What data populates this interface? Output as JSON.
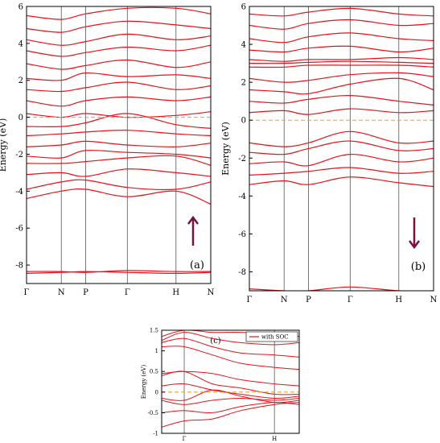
{
  "colors": {
    "band": "#e8111b",
    "fermi": "#f0a020",
    "arrow": "#7a1040",
    "frame": "#000000",
    "hsp_line": "#555555"
  },
  "chart_data": [
    {
      "type": "line",
      "panel_label": "(a)",
      "spin": "up",
      "ylabel": "Energy (eV)",
      "ylim": [
        -9,
        6
      ],
      "yticks": [
        "-8",
        "-6",
        "-4",
        "-2",
        "0",
        "2",
        "4",
        "6"
      ],
      "ytick_values": [
        -8,
        -6,
        -4,
        -2,
        0,
        2,
        4,
        6
      ],
      "fermi_level": 0,
      "kpath": {
        "labels": [
          "Γ",
          "N",
          "P",
          "Γ",
          "H",
          "N"
        ],
        "positions": [
          0,
          0.5,
          0.85,
          1.45,
          2.15,
          2.65
        ]
      },
      "series_desc": "band energies (eV) sampled at the six high-symmetry points",
      "bands": [
        [
          -8.35,
          -8.35,
          -8.4,
          -8.3,
          -8.35,
          -8.35
        ],
        [
          -8.45,
          -8.4,
          -8.35,
          -8.4,
          -8.45,
          -8.4
        ],
        [
          -4.4,
          -4.0,
          -3.9,
          -4.3,
          -4.0,
          -4.7
        ],
        [
          -3.9,
          -3.5,
          -3.4,
          -3.8,
          -3.9,
          -3.5
        ],
        [
          -3.1,
          -3.0,
          -3.2,
          -2.8,
          -3.0,
          -3.2
        ],
        [
          -2.5,
          -2.5,
          -2.4,
          -2.2,
          -2.1,
          -2.6
        ],
        [
          -2.1,
          -2.2,
          -1.8,
          -1.9,
          -2.0,
          -2.2
        ],
        [
          -1.6,
          -1.5,
          -1.3,
          -1.5,
          -1.6,
          -1.4
        ],
        [
          -1.0,
          -0.9,
          -0.8,
          -0.7,
          -0.9,
          -1.0
        ],
        [
          -0.5,
          -0.5,
          -0.3,
          0.2,
          -0.4,
          -0.6
        ],
        [
          0.2,
          0.0,
          0.2,
          0.0,
          0.1,
          0.3
        ],
        [
          0.9,
          0.6,
          0.9,
          1.1,
          0.9,
          1.1
        ],
        [
          1.5,
          1.4,
          1.6,
          1.9,
          1.5,
          1.7
        ],
        [
          2.1,
          2.0,
          2.4,
          2.2,
          2.3,
          2.1
        ],
        [
          2.9,
          2.6,
          2.8,
          3.1,
          2.7,
          3.0
        ],
        [
          3.6,
          3.3,
          3.5,
          3.8,
          3.6,
          3.9
        ],
        [
          4.2,
          3.9,
          4.1,
          4.5,
          4.2,
          4.4
        ],
        [
          4.8,
          4.6,
          4.9,
          5.2,
          5.0,
          4.8
        ],
        [
          5.5,
          5.3,
          5.6,
          5.9,
          5.9,
          5.6
        ]
      ]
    },
    {
      "type": "line",
      "panel_label": "(b)",
      "spin": "down",
      "ylabel": "Energy (eV)",
      "ylim": [
        -9,
        6
      ],
      "yticks": [
        "-8",
        "-6",
        "-4",
        "-2",
        "0",
        "2",
        "4",
        "6"
      ],
      "ytick_values": [
        -8,
        -6,
        -4,
        -2,
        0,
        2,
        4,
        6
      ],
      "fermi_level": 0,
      "kpath": {
        "labels": [
          "Γ",
          "N",
          "P",
          "Γ",
          "H",
          "N"
        ],
        "positions": [
          0,
          0.5,
          0.85,
          1.45,
          2.15,
          2.65
        ]
      },
      "series_desc": "band energies (eV) sampled at the six high-symmetry points",
      "bands": [
        [
          -8.9,
          -9.0,
          -9.0,
          -8.8,
          -9.0,
          -9.0
        ],
        [
          -3.4,
          -3.2,
          -3.4,
          -3.0,
          -3.3,
          -3.5
        ],
        [
          -2.9,
          -2.8,
          -2.7,
          -2.5,
          -2.8,
          -2.7
        ],
        [
          -2.3,
          -2.2,
          -2.4,
          -1.8,
          -2.2,
          -2.0
        ],
        [
          -1.7,
          -1.8,
          -1.5,
          -1.1,
          -1.6,
          -1.5
        ],
        [
          -1.2,
          -1.4,
          -1.2,
          -0.6,
          -1.2,
          -1.1
        ],
        [
          0.4,
          0.5,
          0.3,
          0.6,
          0.4,
          0.5
        ],
        [
          1.0,
          0.9,
          1.1,
          1.3,
          1.0,
          0.8
        ],
        [
          1.6,
          1.5,
          1.4,
          1.9,
          2.2,
          1.6
        ],
        [
          2.2,
          2.0,
          2.1,
          2.4,
          2.5,
          2.3
        ],
        [
          2.8,
          2.8,
          2.9,
          2.9,
          2.9,
          2.8
        ],
        [
          3.0,
          3.0,
          3.05,
          3.1,
          3.05,
          3.0
        ],
        [
          3.2,
          3.1,
          3.2,
          3.2,
          3.3,
          3.2
        ],
        [
          3.7,
          3.6,
          3.8,
          3.9,
          3.6,
          3.8
        ],
        [
          4.3,
          4.1,
          4.4,
          4.6,
          4.3,
          4.2
        ],
        [
          5.0,
          4.8,
          5.1,
          5.3,
          5.0,
          5.1
        ],
        [
          5.6,
          5.5,
          5.7,
          5.9,
          5.6,
          5.5
        ]
      ]
    },
    {
      "type": "line",
      "panel_label": "(c)",
      "ylabel": "Energy (eV)",
      "legend": "with SOC",
      "legend_position": "top-right",
      "ylim": [
        -1,
        1.5
      ],
      "yticks": [
        "-1",
        "-0.5",
        "0",
        "0.5",
        "1",
        "1.5"
      ],
      "ytick_values": [
        -1,
        -0.5,
        0,
        0.5,
        1,
        1.5
      ],
      "fermi_level": 0,
      "kpath": {
        "labels": [
          "Γ",
          "H"
        ],
        "positions": [
          0.2,
          1.0
        ],
        "xlim": [
          0,
          1.22
        ]
      },
      "series_desc": "band energies (eV) sampled at x = 0, 0.2, 0.45, 0.7, 1.0, 1.22",
      "x": [
        0,
        0.2,
        0.45,
        0.7,
        1.0,
        1.22
      ],
      "bands": [
        [
          -0.85,
          -0.7,
          -0.65,
          -0.45,
          -0.3,
          -0.25
        ],
        [
          -0.5,
          -0.45,
          -0.5,
          -0.35,
          -0.25,
          -0.3
        ],
        [
          -0.2,
          -0.3,
          -0.2,
          -0.15,
          -0.2,
          -0.15
        ],
        [
          -0.15,
          -0.2,
          0.05,
          -0.1,
          -0.25,
          -0.2
        ],
        [
          0.15,
          0.2,
          0.05,
          -0.05,
          -0.15,
          -0.1
        ],
        [
          0.4,
          0.5,
          0.2,
          0.1,
          -0.05,
          -0.05
        ],
        [
          0.45,
          0.5,
          0.45,
          0.3,
          0.2,
          0.15
        ],
        [
          1.1,
          1.1,
          0.9,
          0.7,
          0.6,
          0.55
        ],
        [
          1.2,
          1.3,
          1.1,
          0.95,
          0.9,
          0.85
        ],
        [
          1.25,
          1.45,
          1.3,
          1.2,
          1.15,
          1.2
        ],
        [
          1.35,
          1.5,
          1.45,
          1.45,
          1.4,
          1.35
        ]
      ]
    }
  ]
}
